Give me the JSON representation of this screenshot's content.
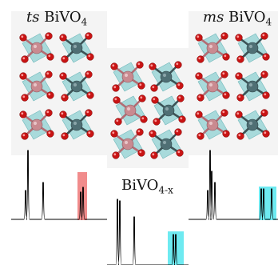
{
  "labels": {
    "left_prefix": "ts",
    "left_formula": "BiVO",
    "left_sub": "4",
    "right_prefix": "ms",
    "right_formula": "BiVO",
    "right_sub": "4",
    "center_formula": "BiVO",
    "center_sub": "4-x"
  },
  "colors": {
    "bi_atom": "#c98a90",
    "v_atom": "#4f6f74",
    "o_atom": "#c81414",
    "polyhedron": "#8fd1d3",
    "bond_bi": "#b36c73",
    "bond_v": "#3d5356",
    "highlight_red": "#f08080",
    "highlight_cyan": "#5ee8f0",
    "panel_bg": "#f4f4f4",
    "spectrum_line": "#000000"
  }
}
